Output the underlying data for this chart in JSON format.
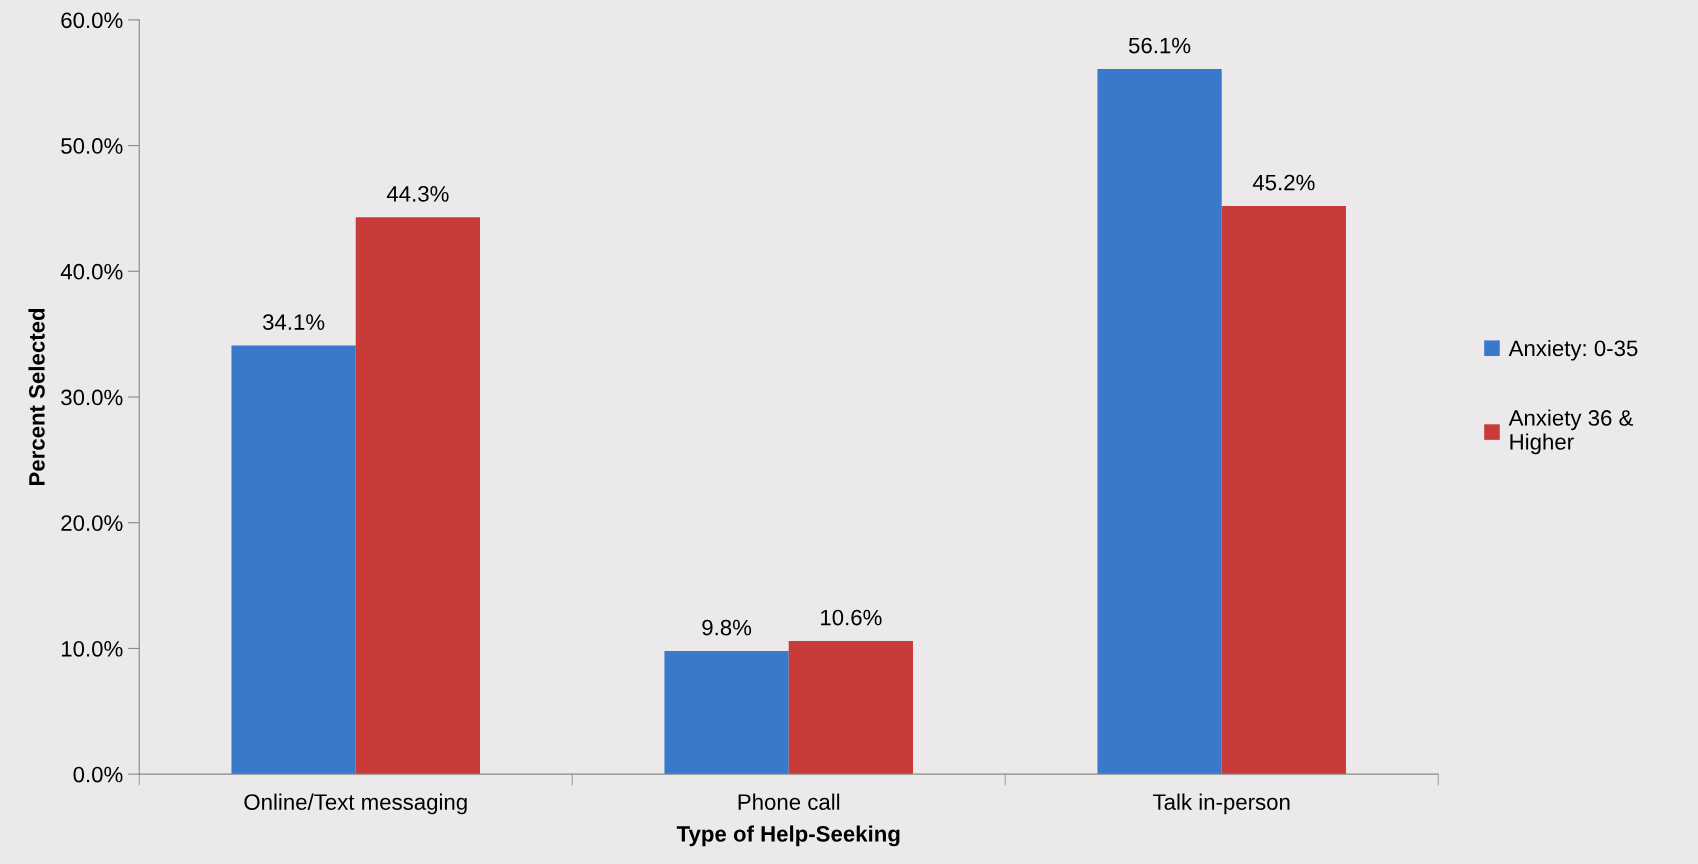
{
  "chart_data": {
    "type": "bar",
    "xlabel": "Type of Help-Seeking",
    "ylabel": "Percent Selected",
    "categories": [
      "Online/Text messaging",
      "Phone call",
      "Talk in-person"
    ],
    "series": [
      {
        "name": "Anxiety: 0-35",
        "color": "#3a78c9",
        "values": [
          34.1,
          9.8,
          56.1
        ],
        "value_labels": [
          "34.1%",
          "9.8%",
          "56.1%"
        ]
      },
      {
        "name": "Anxiety 36 & Higher",
        "color": "#c93b38",
        "values": [
          44.3,
          10.6,
          45.2
        ],
        "value_labels": [
          "44.3%",
          "10.6%",
          "45.2%"
        ]
      }
    ],
    "ylim": [
      0,
      60
    ],
    "yticks": [
      {
        "value": 0,
        "label": "0.0%"
      },
      {
        "value": 10,
        "label": "10.0%"
      },
      {
        "value": 20,
        "label": "20.0%"
      },
      {
        "value": 30,
        "label": "30.0%"
      },
      {
        "value": 40,
        "label": "40.0%"
      },
      {
        "value": 50,
        "label": "50.0%"
      },
      {
        "value": 60,
        "label": "60.0%"
      }
    ],
    "grid": false,
    "legend": "right"
  }
}
